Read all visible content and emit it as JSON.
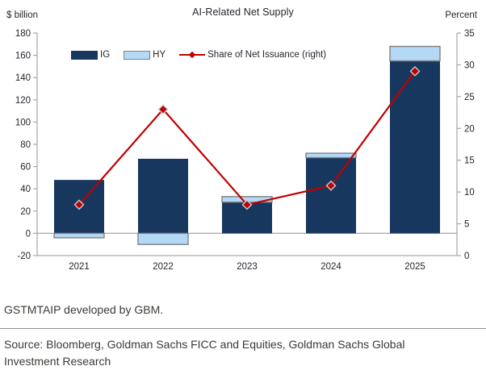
{
  "header": {
    "title": "AI-Related Net Supply",
    "left_axis_unit": "$ billion",
    "right_axis_unit": "Percent"
  },
  "legend": {
    "ig_label": "IG",
    "hy_label": "HY",
    "line_label": "Share of Net Issuance (right)"
  },
  "footer": {
    "note": "GSTMTAIP developed by GBM.",
    "source": "Source: Bloomberg, Goldman Sachs FICC and Equities, Goldman Sachs Global Investment Research"
  },
  "colors": {
    "ig": "#17375e",
    "hy": "#b3d9f7",
    "hy_border": "#808080",
    "line": "#c00000",
    "marker_stroke": "#c7cbd1",
    "axis": "#a6a6a6",
    "text": "#23262c"
  },
  "chart_data": {
    "type": "bar",
    "subtype": "stacked-bars-with-line-on-secondary-axis",
    "title": "AI-Related Net Supply",
    "categories": [
      "2021",
      "2022",
      "2023",
      "2024",
      "2025"
    ],
    "series": [
      {
        "name": "IG",
        "type": "bar",
        "axis": "left",
        "values": [
          48,
          67,
          28,
          68,
          155
        ]
      },
      {
        "name": "HY",
        "type": "bar",
        "axis": "left",
        "values": [
          -4,
          -10,
          5,
          4,
          13
        ]
      },
      {
        "name": "Share of Net Issuance (right)",
        "type": "line",
        "axis": "right",
        "values": [
          8,
          23,
          8,
          11,
          29
        ]
      }
    ],
    "left_axis": {
      "label": "$ billion",
      "min": -20,
      "max": 180,
      "step": 20
    },
    "right_axis": {
      "label": "Percent",
      "min": 0,
      "max": 35,
      "step": 5
    },
    "legend_position": "top-inside",
    "grid": false,
    "zero_line": true
  }
}
